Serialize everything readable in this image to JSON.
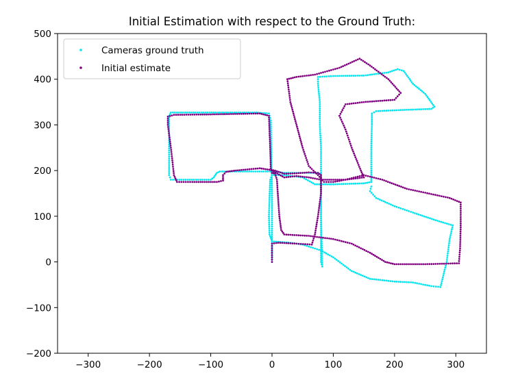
{
  "chart_data": {
    "type": "scatter",
    "title": "Initial Estimation with respect to the Ground Truth:",
    "xlabel": "",
    "ylabel": "",
    "xlim": [
      -350,
      350
    ],
    "ylim": [
      -200,
      500
    ],
    "xticks": [
      -300,
      -200,
      -100,
      0,
      100,
      200,
      300
    ],
    "yticks": [
      -200,
      -100,
      0,
      100,
      200,
      300,
      400,
      500
    ],
    "xtick_labels": [
      "−300",
      "−200",
      "−100",
      "0",
      "100",
      "200",
      "300"
    ],
    "ytick_labels": [
      "−200",
      "−100",
      "0",
      "100",
      "200",
      "300",
      "400",
      "500"
    ],
    "grid": false,
    "legend_position": "top-left",
    "series": [
      {
        "name": "Cameras ground truth",
        "color": "#00e5ee",
        "points": [
          [
            0,
            0
          ],
          [
            0,
            50
          ],
          [
            0,
            150
          ],
          [
            -2,
            310
          ],
          [
            -5,
            325
          ],
          [
            -25,
            327
          ],
          [
            -165,
            327
          ],
          [
            -168,
            320
          ],
          [
            -168,
            190
          ],
          [
            -165,
            180
          ],
          [
            -100,
            180
          ],
          [
            -95,
            185
          ],
          [
            -90,
            195
          ],
          [
            -85,
            198
          ],
          [
            0,
            198
          ],
          [
            20,
            195
          ],
          [
            70,
            195
          ],
          [
            80,
            192
          ],
          [
            80,
            175
          ],
          [
            80,
            100
          ],
          [
            80,
            0
          ],
          [
            82,
            -10
          ],
          [
            80,
            100
          ],
          [
            80,
            200
          ],
          [
            80,
            250
          ],
          [
            78,
            300
          ],
          [
            78,
            350
          ],
          [
            75,
            390
          ],
          [
            75,
            405
          ],
          [
            100,
            407
          ],
          [
            150,
            408
          ],
          [
            190,
            415
          ],
          [
            205,
            422
          ],
          [
            215,
            418
          ],
          [
            230,
            390
          ],
          [
            250,
            368
          ],
          [
            265,
            340
          ],
          [
            260,
            335
          ],
          [
            200,
            332
          ],
          [
            170,
            330
          ],
          [
            163,
            325
          ],
          [
            163,
            300
          ],
          [
            162,
            250
          ],
          [
            162,
            200
          ],
          [
            162,
            175
          ],
          [
            150,
            172
          ],
          [
            100,
            170
          ],
          [
            70,
            170
          ],
          [
            50,
            185
          ],
          [
            20,
            190
          ],
          [
            0,
            190
          ],
          [
            -3,
            180
          ],
          [
            -5,
            100
          ],
          [
            -4,
            60
          ],
          [
            0,
            45
          ],
          [
            30,
            42
          ],
          [
            50,
            38
          ],
          [
            80,
            25
          ],
          [
            100,
            10
          ],
          [
            130,
            -20
          ],
          [
            160,
            -37
          ],
          [
            200,
            -43
          ],
          [
            230,
            -45
          ],
          [
            260,
            -53
          ],
          [
            275,
            -55
          ],
          [
            285,
            0
          ],
          [
            290,
            50
          ],
          [
            295,
            80
          ],
          [
            270,
            90
          ],
          [
            230,
            108
          ],
          [
            200,
            122
          ],
          [
            170,
            140
          ],
          [
            160,
            155
          ],
          [
            162,
            165
          ]
        ]
      },
      {
        "name": "Initial estimate",
        "color": "#800080",
        "points": [
          [
            0,
            0
          ],
          [
            0,
            20
          ],
          [
            0,
            40
          ],
          [
            10,
            42
          ],
          [
            40,
            40
          ],
          [
            65,
            38
          ],
          [
            70,
            60
          ],
          [
            75,
            100
          ],
          [
            80,
            150
          ],
          [
            80,
            190
          ],
          [
            75,
            195
          ],
          [
            60,
            196
          ],
          [
            40,
            194
          ],
          [
            20,
            193
          ],
          [
            5,
            200
          ],
          [
            -20,
            205
          ],
          [
            -60,
            200
          ],
          [
            -75,
            197
          ],
          [
            -80,
            190
          ],
          [
            -80,
            178
          ],
          [
            -90,
            175
          ],
          [
            -130,
            175
          ],
          [
            -155,
            175
          ],
          [
            -160,
            190
          ],
          [
            -165,
            250
          ],
          [
            -170,
            300
          ],
          [
            -170,
            318
          ],
          [
            -160,
            322
          ],
          [
            -100,
            323
          ],
          [
            -20,
            325
          ],
          [
            -5,
            320
          ],
          [
            -3,
            250
          ],
          [
            -2,
            205
          ],
          [
            0,
            195
          ],
          [
            5,
            193
          ],
          [
            8,
            180
          ],
          [
            10,
            140
          ],
          [
            12,
            100
          ],
          [
            15,
            70
          ],
          [
            20,
            60
          ],
          [
            60,
            57
          ],
          [
            100,
            50
          ],
          [
            130,
            40
          ],
          [
            160,
            20
          ],
          [
            185,
            0
          ],
          [
            200,
            -5
          ],
          [
            250,
            -5
          ],
          [
            305,
            -3
          ],
          [
            307,
            30
          ],
          [
            308,
            80
          ],
          [
            308,
            130
          ],
          [
            290,
            140
          ],
          [
            220,
            160
          ],
          [
            180,
            180
          ],
          [
            150,
            190
          ],
          [
            120,
            180
          ],
          [
            100,
            175
          ],
          [
            85,
            175
          ],
          [
            75,
            190
          ],
          [
            60,
            210
          ],
          [
            50,
            250
          ],
          [
            40,
            300
          ],
          [
            30,
            350
          ],
          [
            25,
            400
          ],
          [
            40,
            405
          ],
          [
            70,
            410
          ],
          [
            110,
            425
          ],
          [
            143,
            445
          ],
          [
            160,
            430
          ],
          [
            190,
            400
          ],
          [
            210,
            370
          ],
          [
            200,
            355
          ],
          [
            150,
            350
          ],
          [
            120,
            345
          ],
          [
            110,
            320
          ],
          [
            120,
            290
          ],
          [
            130,
            250
          ],
          [
            145,
            200
          ],
          [
            150,
            185
          ],
          [
            120,
            180
          ],
          [
            80,
            180
          ],
          [
            60,
            185
          ],
          [
            40,
            188
          ],
          [
            20,
            185
          ],
          [
            0,
            200
          ]
        ]
      }
    ]
  }
}
